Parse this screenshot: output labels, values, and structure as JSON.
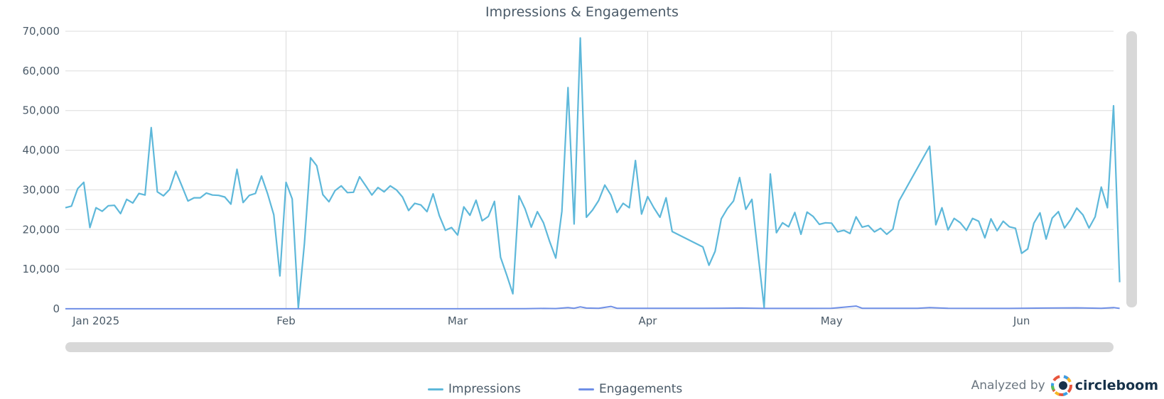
{
  "chart_data": {
    "type": "line",
    "title": "Impressions & Engagements",
    "ylim": [
      0,
      70000
    ],
    "yticks": [
      "0",
      "10,000",
      "20,000",
      "30,000",
      "40,000",
      "50,000",
      "60,000",
      "70,000"
    ],
    "xlim": [
      "2024-12-27",
      "2025-06-16"
    ],
    "xticks": [
      {
        "date": "2025-01-01",
        "label": "Jan 2025"
      },
      {
        "date": "2025-02-01",
        "label": "Feb"
      },
      {
        "date": "2025-03-01",
        "label": "Mar"
      },
      {
        "date": "2025-04-01",
        "label": "Apr"
      },
      {
        "date": "2025-05-01",
        "label": "May"
      },
      {
        "date": "2025-06-01",
        "label": "Jun"
      }
    ],
    "grid": true,
    "legend_position": "bottom",
    "series": [
      {
        "name": "Impressions",
        "color": "#5eb8da",
        "points": [
          [
            "2024-12-27",
            25500
          ],
          [
            "2024-12-28",
            25900
          ],
          [
            "2024-12-29",
            30300
          ],
          [
            "2024-12-30",
            31900
          ],
          [
            "2024-12-31",
            20500
          ],
          [
            "2025-01-01",
            25500
          ],
          [
            "2025-01-02",
            24600
          ],
          [
            "2025-01-03",
            26000
          ],
          [
            "2025-01-04",
            26100
          ],
          [
            "2025-01-05",
            24000
          ],
          [
            "2025-01-06",
            27600
          ],
          [
            "2025-01-07",
            26700
          ],
          [
            "2025-01-08",
            29100
          ],
          [
            "2025-01-09",
            28700
          ],
          [
            "2025-01-10",
            45700
          ],
          [
            "2025-01-11",
            29500
          ],
          [
            "2025-01-12",
            28500
          ],
          [
            "2025-01-13",
            30100
          ],
          [
            "2025-01-14",
            34700
          ],
          [
            "2025-01-15",
            31000
          ],
          [
            "2025-01-16",
            27200
          ],
          [
            "2025-01-17",
            28000
          ],
          [
            "2025-01-18",
            28000
          ],
          [
            "2025-01-19",
            29200
          ],
          [
            "2025-01-20",
            28700
          ],
          [
            "2025-01-21",
            28600
          ],
          [
            "2025-01-22",
            28200
          ],
          [
            "2025-01-23",
            26400
          ],
          [
            "2025-01-24",
            35200
          ],
          [
            "2025-01-25",
            26800
          ],
          [
            "2025-01-26",
            28600
          ],
          [
            "2025-01-27",
            29100
          ],
          [
            "2025-01-28",
            33500
          ],
          [
            "2025-01-29",
            29000
          ],
          [
            "2025-01-30",
            23700
          ],
          [
            "2025-01-31",
            8300
          ],
          [
            "2025-02-01",
            31900
          ],
          [
            "2025-02-02",
            27700
          ],
          [
            "2025-02-03",
            200
          ],
          [
            "2025-02-04",
            16500
          ],
          [
            "2025-02-05",
            38100
          ],
          [
            "2025-02-06",
            36100
          ],
          [
            "2025-02-07",
            28800
          ],
          [
            "2025-02-08",
            27000
          ],
          [
            "2025-02-09",
            29800
          ],
          [
            "2025-02-10",
            31000
          ],
          [
            "2025-02-11",
            29300
          ],
          [
            "2025-02-12",
            29400
          ],
          [
            "2025-02-13",
            33300
          ],
          [
            "2025-02-14",
            31000
          ],
          [
            "2025-02-15",
            28700
          ],
          [
            "2025-02-16",
            30600
          ],
          [
            "2025-02-17",
            29500
          ],
          [
            "2025-02-18",
            31000
          ],
          [
            "2025-02-19",
            30000
          ],
          [
            "2025-02-20",
            28200
          ],
          [
            "2025-02-21",
            24800
          ],
          [
            "2025-02-22",
            26600
          ],
          [
            "2025-02-23",
            26200
          ],
          [
            "2025-02-24",
            24500
          ],
          [
            "2025-02-25",
            29000
          ],
          [
            "2025-02-26",
            23500
          ],
          [
            "2025-02-27",
            19800
          ],
          [
            "2025-02-28",
            20500
          ],
          [
            "2025-03-01",
            18600
          ],
          [
            "2025-03-02",
            25700
          ],
          [
            "2025-03-03",
            23600
          ],
          [
            "2025-03-04",
            27400
          ],
          [
            "2025-03-05",
            22200
          ],
          [
            "2025-03-06",
            23300
          ],
          [
            "2025-03-07",
            27100
          ],
          [
            "2025-03-08",
            13000
          ],
          [
            "2025-03-09",
            8500
          ],
          [
            "2025-03-10",
            3800
          ],
          [
            "2025-03-11",
            28500
          ],
          [
            "2025-03-12",
            25200
          ],
          [
            "2025-03-13",
            20600
          ],
          [
            "2025-03-14",
            24500
          ],
          [
            "2025-03-15",
            21700
          ],
          [
            "2025-03-16",
            17000
          ],
          [
            "2025-03-17",
            12800
          ],
          [
            "2025-03-18",
            24600
          ],
          [
            "2025-03-19",
            55800
          ],
          [
            "2025-03-20",
            21400
          ],
          [
            "2025-03-21",
            68300
          ],
          [
            "2025-03-22",
            23100
          ],
          [
            "2025-03-23",
            24900
          ],
          [
            "2025-03-24",
            27300
          ],
          [
            "2025-03-25",
            31200
          ],
          [
            "2025-03-26",
            28700
          ],
          [
            "2025-03-27",
            24300
          ],
          [
            "2025-03-28",
            26600
          ],
          [
            "2025-03-29",
            25500
          ],
          [
            "2025-03-30",
            37400
          ],
          [
            "2025-03-31",
            23900
          ],
          [
            "2025-04-01",
            28300
          ],
          [
            "2025-04-02",
            25500
          ],
          [
            "2025-04-03",
            23100
          ],
          [
            "2025-04-04",
            28000
          ],
          [
            "2025-04-05",
            19500
          ],
          [
            "2025-04-10",
            15600
          ],
          [
            "2025-04-11",
            11000
          ],
          [
            "2025-04-12",
            14500
          ],
          [
            "2025-04-13",
            22700
          ],
          [
            "2025-04-14",
            25300
          ],
          [
            "2025-04-15",
            27200
          ],
          [
            "2025-04-16",
            33100
          ],
          [
            "2025-04-17",
            25100
          ],
          [
            "2025-04-18",
            27600
          ],
          [
            "2025-04-20",
            300
          ],
          [
            "2025-04-21",
            34000
          ],
          [
            "2025-04-22",
            19200
          ],
          [
            "2025-04-23",
            21700
          ],
          [
            "2025-04-24",
            20700
          ],
          [
            "2025-04-25",
            24300
          ],
          [
            "2025-04-26",
            18800
          ],
          [
            "2025-04-27",
            24400
          ],
          [
            "2025-04-28",
            23300
          ],
          [
            "2025-04-29",
            21300
          ],
          [
            "2025-04-30",
            21700
          ],
          [
            "2025-05-01",
            21600
          ],
          [
            "2025-05-02",
            19400
          ],
          [
            "2025-05-03",
            19800
          ],
          [
            "2025-05-04",
            19000
          ],
          [
            "2025-05-05",
            23200
          ],
          [
            "2025-05-06",
            20600
          ],
          [
            "2025-05-07",
            21000
          ],
          [
            "2025-05-08",
            19400
          ],
          [
            "2025-05-09",
            20300
          ],
          [
            "2025-05-10",
            18800
          ],
          [
            "2025-05-11",
            20100
          ],
          [
            "2025-05-12",
            27200
          ],
          [
            "2025-05-17",
            41000
          ],
          [
            "2025-05-18",
            21200
          ],
          [
            "2025-05-19",
            25500
          ],
          [
            "2025-05-20",
            19900
          ],
          [
            "2025-05-21",
            22800
          ],
          [
            "2025-05-22",
            21700
          ],
          [
            "2025-05-23",
            19800
          ],
          [
            "2025-05-24",
            22800
          ],
          [
            "2025-05-25",
            22100
          ],
          [
            "2025-05-26",
            17900
          ],
          [
            "2025-05-27",
            22700
          ],
          [
            "2025-05-28",
            19700
          ],
          [
            "2025-05-29",
            22100
          ],
          [
            "2025-05-30",
            20700
          ],
          [
            "2025-05-31",
            20300
          ],
          [
            "2025-06-01",
            14000
          ],
          [
            "2025-06-02",
            15100
          ],
          [
            "2025-06-03",
            21600
          ],
          [
            "2025-06-04",
            24200
          ],
          [
            "2025-06-05",
            17600
          ],
          [
            "2025-06-06",
            22900
          ],
          [
            "2025-06-07",
            24500
          ],
          [
            "2025-06-08",
            20400
          ],
          [
            "2025-06-09",
            22500
          ],
          [
            "2025-06-10",
            25400
          ],
          [
            "2025-06-11",
            23700
          ],
          [
            "2025-06-12",
            20400
          ],
          [
            "2025-06-13",
            23200
          ],
          [
            "2025-06-14",
            30700
          ],
          [
            "2025-06-15",
            25500
          ],
          [
            "2025-06-16",
            51200
          ],
          [
            "2025-06-17",
            6700
          ]
        ]
      },
      {
        "name": "Engagements",
        "color": "#6f8fe6",
        "points": [
          [
            "2024-12-27",
            20
          ],
          [
            "2025-01-15",
            20
          ],
          [
            "2025-02-01",
            20
          ],
          [
            "2025-02-15",
            20
          ],
          [
            "2025-03-01",
            20
          ],
          [
            "2025-03-12",
            40
          ],
          [
            "2025-03-15",
            100
          ],
          [
            "2025-03-17",
            80
          ],
          [
            "2025-03-19",
            300
          ],
          [
            "2025-03-20",
            150
          ],
          [
            "2025-03-21",
            500
          ],
          [
            "2025-03-22",
            200
          ],
          [
            "2025-03-24",
            150
          ],
          [
            "2025-03-26",
            600
          ],
          [
            "2025-03-27",
            150
          ],
          [
            "2025-04-01",
            120
          ],
          [
            "2025-04-10",
            120
          ],
          [
            "2025-04-16",
            200
          ],
          [
            "2025-04-20",
            100
          ],
          [
            "2025-04-25",
            100
          ],
          [
            "2025-05-01",
            120
          ],
          [
            "2025-05-05",
            700
          ],
          [
            "2025-05-06",
            150
          ],
          [
            "2025-05-15",
            150
          ],
          [
            "2025-05-17",
            300
          ],
          [
            "2025-05-20",
            150
          ],
          [
            "2025-05-30",
            100
          ],
          [
            "2025-06-05",
            200
          ],
          [
            "2025-06-10",
            250
          ],
          [
            "2025-06-14",
            150
          ],
          [
            "2025-06-16",
            300
          ],
          [
            "2025-06-17",
            100
          ]
        ]
      }
    ]
  },
  "branding": {
    "analyzed_label": "Analyzed by",
    "brand_name": "circleboom",
    "logo_icon": "circleboom-logo-icon"
  }
}
